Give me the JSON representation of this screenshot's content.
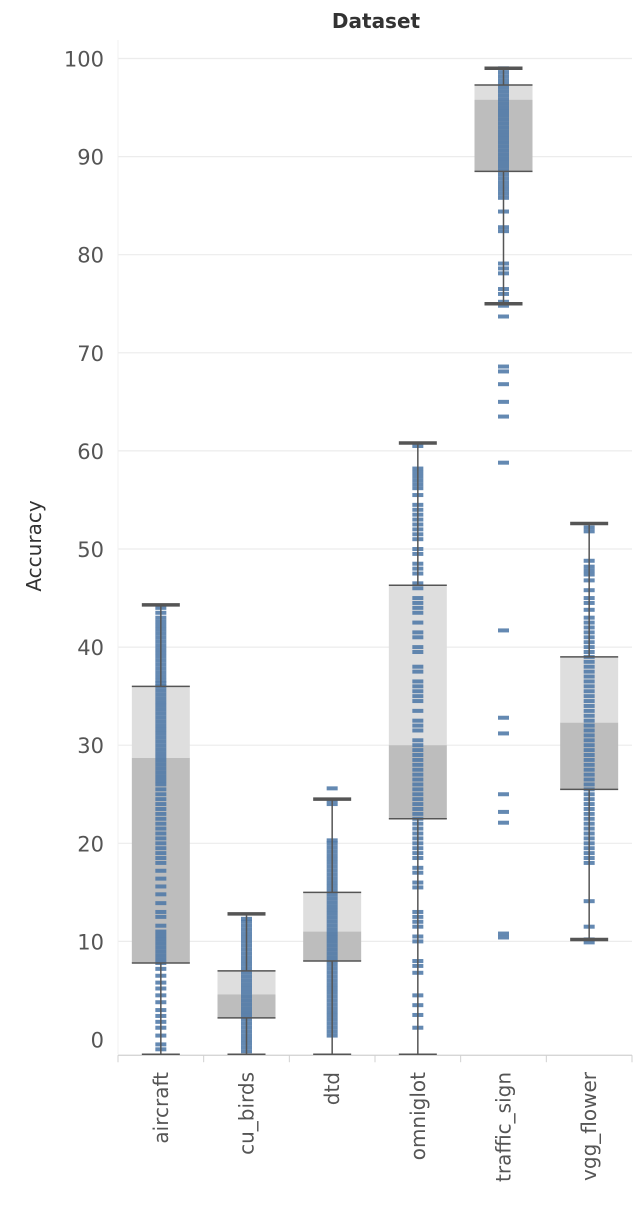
{
  "chart_data": {
    "type": "boxplot",
    "title": "Dataset",
    "xlabel": "",
    "ylabel": "Accuracy",
    "ylim": [
      -1.5,
      104
    ],
    "yticks": [
      0,
      10,
      20,
      30,
      40,
      50,
      60,
      70,
      80,
      90,
      100
    ],
    "categories": [
      "aircraft",
      "cu_birds",
      "dtd",
      "omniglot",
      "traffic_sign",
      "vgg_flower"
    ],
    "colors": {
      "point": "#4e79a7",
      "upper_box": "#dedede",
      "lower_box": "#bdbdbd",
      "whisker": "#555555",
      "grid": "#ececec",
      "axis": "#d0d0d0"
    },
    "boxes": [
      {
        "category": "aircraft",
        "whisker_low": -1.5,
        "q1": 7.8,
        "median": 28.7,
        "q3": 36.0,
        "whisker_high": 44.3
      },
      {
        "category": "cu_birds",
        "whisker_low": -1.5,
        "q1": 2.2,
        "median": 4.6,
        "q3": 7.0,
        "whisker_high": 12.8
      },
      {
        "category": "dtd",
        "whisker_low": -1.5,
        "q1": 8.0,
        "median": 11.0,
        "q3": 15.0,
        "whisker_high": 24.5
      },
      {
        "category": "omniglot",
        "whisker_low": -1.5,
        "q1": 22.5,
        "median": 30.0,
        "q3": 46.3,
        "whisker_high": 60.8
      },
      {
        "category": "traffic_sign",
        "whisker_low": 75.0,
        "q1": 88.5,
        "median": 95.8,
        "q3": 97.3,
        "whisker_high": 99.0
      },
      {
        "category": "vgg_flower",
        "whisker_low": 10.2,
        "q1": 25.5,
        "median": 32.3,
        "q3": 39.0,
        "whisker_high": 52.6
      }
    ],
    "points": {
      "aircraft": [
        44,
        43.5,
        43,
        42.6,
        42.2,
        41.8,
        41.4,
        41,
        40.6,
        40.2,
        39.8,
        39.4,
        39,
        38.6,
        38.2,
        37.8,
        37.4,
        37,
        36.6,
        36.3,
        36,
        35.6,
        35.2,
        34.8,
        34.4,
        34,
        33.6,
        33.2,
        32.8,
        32.4,
        32,
        31.6,
        31.2,
        30.8,
        30.4,
        30,
        29.6,
        29.2,
        28.8,
        28.4,
        28,
        27.6,
        27.2,
        26.8,
        26.4,
        26,
        25.5,
        25,
        24.5,
        24,
        23.5,
        23,
        22.5,
        22,
        21.5,
        21,
        20.5,
        20,
        19.5,
        19,
        18.5,
        18,
        17.2,
        16.4,
        15.6,
        14.8,
        13.9,
        13,
        12.5,
        11.6,
        11,
        10.6,
        10.2,
        9.8,
        9.4,
        9,
        8.6,
        8.2,
        7.8,
        7.2,
        6.5,
        5.8,
        5.2,
        4.5,
        3.8,
        3,
        2.4,
        1.8,
        1.2,
        0.4,
        -0.5,
        -1
      ],
      "cu_birds": [
        12.3,
        12,
        11.6,
        11.2,
        10.8,
        10.4,
        10,
        9.6,
        9.2,
        8.8,
        8.4,
        8,
        7.6,
        7.2,
        6.8,
        6.4,
        6,
        5.6,
        5.2,
        4.8,
        4.4,
        4,
        3.6,
        3.2,
        2.8,
        2.4,
        2,
        1.6,
        1.2,
        0.8,
        0.4,
        0,
        -0.4,
        -0.8,
        -1.2
      ],
      "dtd": [
        25.6,
        24.4,
        24,
        20.3,
        20,
        19.6,
        19.2,
        18.8,
        18.4,
        18,
        17.6,
        17.2,
        16.8,
        16.4,
        16,
        15.6,
        15.2,
        14.8,
        14.4,
        14,
        13.6,
        13.2,
        12.8,
        12.4,
        12,
        11.6,
        11.2,
        10.8,
        10.4,
        10,
        9.6,
        9.2,
        8.8,
        8.4,
        8,
        7.6,
        7.2,
        6.8,
        6.4,
        6,
        5.6,
        5.2,
        4.8,
        4.4,
        4,
        3.6,
        3.2,
        2.8,
        2.4,
        2,
        1.6,
        1.2,
        0.8,
        0.4
      ],
      "omniglot": [
        60.5,
        58.2,
        57.8,
        57.4,
        57,
        56.6,
        56.2,
        55.5,
        54.5,
        54,
        53.5,
        53,
        52.5,
        52,
        51.5,
        51,
        50,
        49.5,
        48.5,
        48,
        47.5,
        46.5,
        46,
        45,
        44.5,
        44,
        43.5,
        42.5,
        41.5,
        41,
        40,
        39.5,
        38,
        37.5,
        36.5,
        36,
        35.5,
        35,
        34.5,
        33.5,
        32.5,
        32,
        31.5,
        30.5,
        30,
        29.5,
        29,
        28.5,
        28,
        27.5,
        27,
        26.5,
        26,
        25.5,
        25,
        24.5,
        24,
        23.5,
        23,
        22.5,
        22,
        21.5,
        21,
        20.5,
        20,
        19.5,
        19,
        18.5,
        17.5,
        17,
        16,
        15.5,
        13,
        12.5,
        12,
        11.5,
        10.5,
        10,
        8,
        7.5,
        6.8,
        4.5,
        3.5,
        2.5,
        1.2
      ],
      "traffic_sign": [
        99,
        98.6,
        98.2,
        97.8,
        97.4,
        97,
        96.6,
        96.2,
        95.8,
        95.4,
        95,
        94.6,
        94.2,
        93.8,
        93.4,
        93,
        92.6,
        92.2,
        91.8,
        91.4,
        91,
        90.6,
        90.2,
        89.8,
        89.4,
        89,
        88.6,
        88.2,
        87.8,
        87.4,
        87,
        86.6,
        86.2,
        85.8,
        84.4,
        82.8,
        82.4,
        79.1,
        78.6,
        78.1,
        76.5,
        76,
        75.2,
        74.8,
        73.7,
        68.6,
        68.1,
        66.8,
        65,
        63.5,
        58.8,
        41.7,
        32.8,
        31.2,
        25,
        23.2,
        22.1,
        10.8,
        10.4
      ],
      "vgg_flower": [
        52.2,
        51.8,
        48.8,
        48.2,
        47.8,
        47.4,
        46.8,
        45.8,
        45,
        44.5,
        43.8,
        43,
        42.5,
        42,
        41.5,
        41,
        40.5,
        40,
        39.5,
        39,
        38.5,
        38,
        37.5,
        37,
        36.5,
        36,
        35.5,
        35,
        34.5,
        34,
        33.5,
        33,
        32.5,
        32,
        31.5,
        31,
        30.5,
        30,
        29.5,
        29,
        28.5,
        28,
        27.5,
        27,
        26.5,
        26,
        25.5,
        25,
        24.5,
        24,
        23.5,
        23,
        22.5,
        22,
        21.5,
        21,
        20.5,
        20,
        19.5,
        19,
        18.5,
        18,
        14.1,
        11.5,
        10.2,
        9.9
      ]
    }
  }
}
